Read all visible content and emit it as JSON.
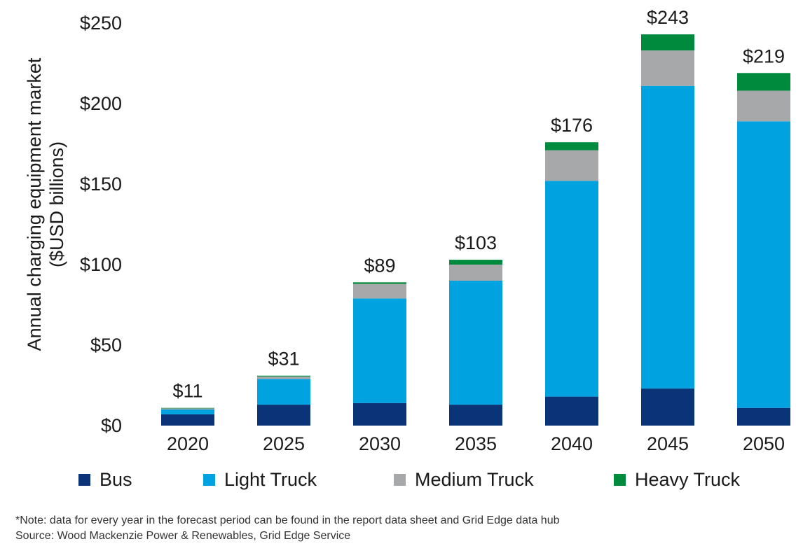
{
  "chart_data": {
    "type": "bar",
    "stacked": true,
    "categories": [
      "2020",
      "2025",
      "2030",
      "2035",
      "2040",
      "2045",
      "2050"
    ],
    "series": [
      {
        "name": "Bus",
        "color": "#0b3378",
        "values": [
          7,
          13,
          14,
          13,
          18,
          23,
          11
        ]
      },
      {
        "name": "Light Truck",
        "color": "#00a3e0",
        "values": [
          3,
          16,
          65,
          77,
          134,
          188,
          178
        ]
      },
      {
        "name": "Medium Truck",
        "color": "#a7a8aa",
        "values": [
          0.7,
          1.5,
          9,
          10,
          19,
          22,
          19
        ]
      },
      {
        "name": "Heavy Truck",
        "color": "#008a3e",
        "values": [
          0.3,
          0.5,
          1,
          3,
          5,
          10,
          11
        ]
      }
    ],
    "totals": [
      "$11",
      "$31",
      "$89",
      "$103",
      "$176",
      "$243",
      "$219"
    ],
    "ylabel": "Annual charging equipment market ($USD billions)",
    "ylabel_lines": [
      "Annual charging equipment market",
      "($USD billions)"
    ],
    "ylim": [
      0,
      250
    ],
    "yticks": [
      0,
      50,
      100,
      150,
      200,
      250
    ],
    "ytick_labels": [
      "$0",
      "$50",
      "$100",
      "$150",
      "$200",
      "$250"
    ],
    "grid": false,
    "legend_position": "bottom"
  },
  "footnote": {
    "note": "*Note: data for every year in the forecast period can be found in the report data sheet and Grid Edge data hub",
    "source": "Source: Wood Mackenzie Power & Renewables, Grid Edge Service"
  }
}
